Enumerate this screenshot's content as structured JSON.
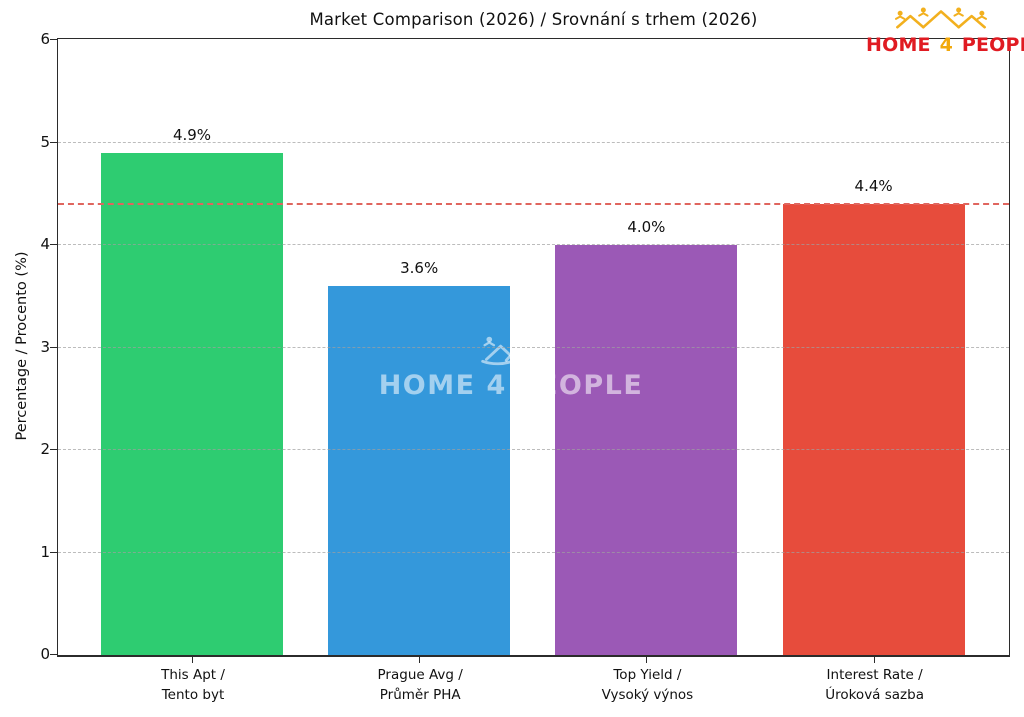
{
  "title": "Market Comparison (2026) / Srovnání s trhem (2026)",
  "logo": {
    "home": "HOME",
    "four": "4",
    "people": "PEOPLE"
  },
  "watermark": {
    "text": "HOME 4 PEOPLE"
  },
  "chart_data": {
    "type": "bar",
    "title": "Market Comparison (2026) / Srovnání s trhem (2026)",
    "xlabel": "",
    "ylabel": "Percentage / Procento (%)",
    "ylim": [
      0,
      6
    ],
    "yticks": [
      0,
      1,
      2,
      3,
      4,
      5,
      6
    ],
    "grid": "horizontal dashed gridlines at integer ticks",
    "legend": "none",
    "categories": [
      {
        "slug": "this-apt",
        "lines": [
          "This Apt /",
          "Tento byt"
        ]
      },
      {
        "slug": "prague-avg",
        "lines": [
          "Prague Avg /",
          "Průměr PHA"
        ]
      },
      {
        "slug": "top-yield",
        "lines": [
          "Top Yield /",
          "Vysoký výnos"
        ]
      },
      {
        "slug": "interest-rate",
        "lines": [
          "Interest Rate /",
          "Úroková sazba"
        ]
      }
    ],
    "values": [
      4.9,
      3.6,
      4.0,
      4.4
    ],
    "value_labels": [
      "4.9%",
      "3.6%",
      "4.0%",
      "4.4%"
    ],
    "bar_colors": [
      "#2ecc71",
      "#3498db",
      "#9b59b6",
      "#e74c3c"
    ],
    "reference_line": {
      "value": 4.4,
      "style": "dashed",
      "color": "#e0655e"
    }
  }
}
